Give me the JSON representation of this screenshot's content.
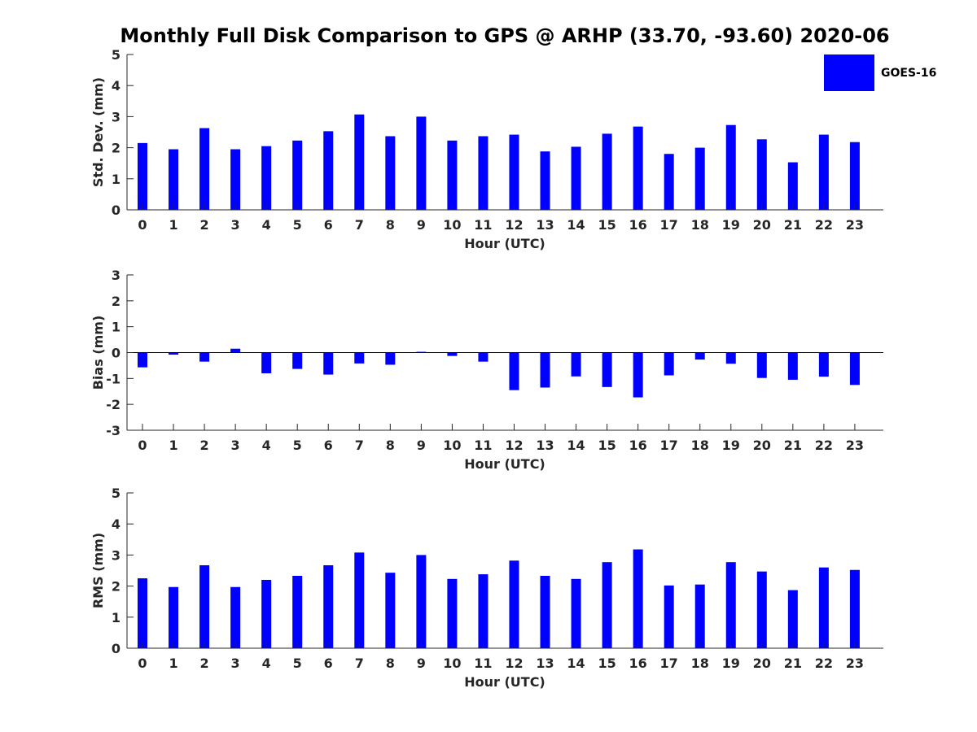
{
  "title": "Monthly Full Disk Comparison to GPS @ ARHP (33.70, -93.60) 2020-06",
  "legend": {
    "label": "GOES-16",
    "color": "#0000ff",
    "placement": "top-right"
  },
  "chart_data": [
    {
      "type": "bar",
      "xlabel": "Hour (UTC)",
      "ylabel": "Std. Dev. (mm)",
      "ylim": [
        0,
        5
      ],
      "yticks": [
        0,
        1,
        2,
        3,
        4,
        5
      ],
      "categories": [
        "0",
        "1",
        "2",
        "3",
        "4",
        "5",
        "6",
        "7",
        "8",
        "9",
        "10",
        "11",
        "12",
        "13",
        "14",
        "15",
        "16",
        "17",
        "18",
        "19",
        "20",
        "21",
        "22",
        "23"
      ],
      "series": [
        {
          "name": "GOES-16",
          "values": [
            2.15,
            1.95,
            2.63,
            1.95,
            2.05,
            2.23,
            2.53,
            3.07,
            2.37,
            3.0,
            2.23,
            2.37,
            2.42,
            1.88,
            2.03,
            2.45,
            2.68,
            1.8,
            2.0,
            2.73,
            2.27,
            1.53,
            2.42,
            2.18
          ]
        }
      ]
    },
    {
      "type": "bar",
      "xlabel": "Hour (UTC)",
      "ylabel": "Bias (mm)",
      "ylim": [
        -3,
        3
      ],
      "yticks": [
        -3,
        -2,
        -1,
        0,
        1,
        2,
        3
      ],
      "categories": [
        "0",
        "1",
        "2",
        "3",
        "4",
        "5",
        "6",
        "7",
        "8",
        "9",
        "10",
        "11",
        "12",
        "13",
        "14",
        "15",
        "16",
        "17",
        "18",
        "19",
        "20",
        "21",
        "22",
        "23"
      ],
      "series": [
        {
          "name": "GOES-16",
          "values": [
            -0.57,
            -0.08,
            -0.35,
            0.15,
            -0.8,
            -0.63,
            -0.85,
            -0.42,
            -0.47,
            0.03,
            -0.13,
            -0.35,
            -1.45,
            -1.35,
            -0.92,
            -1.33,
            -1.73,
            -0.88,
            -0.27,
            -0.43,
            -0.98,
            -1.05,
            -0.93,
            -1.25
          ]
        }
      ]
    },
    {
      "type": "bar",
      "xlabel": "Hour (UTC)",
      "ylabel": "RMS (mm)",
      "ylim": [
        0,
        5
      ],
      "yticks": [
        0,
        1,
        2,
        3,
        4,
        5
      ],
      "categories": [
        "0",
        "1",
        "2",
        "3",
        "4",
        "5",
        "6",
        "7",
        "8",
        "9",
        "10",
        "11",
        "12",
        "13",
        "14",
        "15",
        "16",
        "17",
        "18",
        "19",
        "20",
        "21",
        "22",
        "23"
      ],
      "series": [
        {
          "name": "GOES-16",
          "values": [
            2.25,
            1.97,
            2.67,
            1.97,
            2.2,
            2.33,
            2.67,
            3.08,
            2.43,
            3.0,
            2.23,
            2.38,
            2.82,
            2.33,
            2.23,
            2.77,
            3.18,
            2.02,
            2.05,
            2.77,
            2.47,
            1.87,
            2.6,
            2.52
          ]
        }
      ]
    }
  ]
}
